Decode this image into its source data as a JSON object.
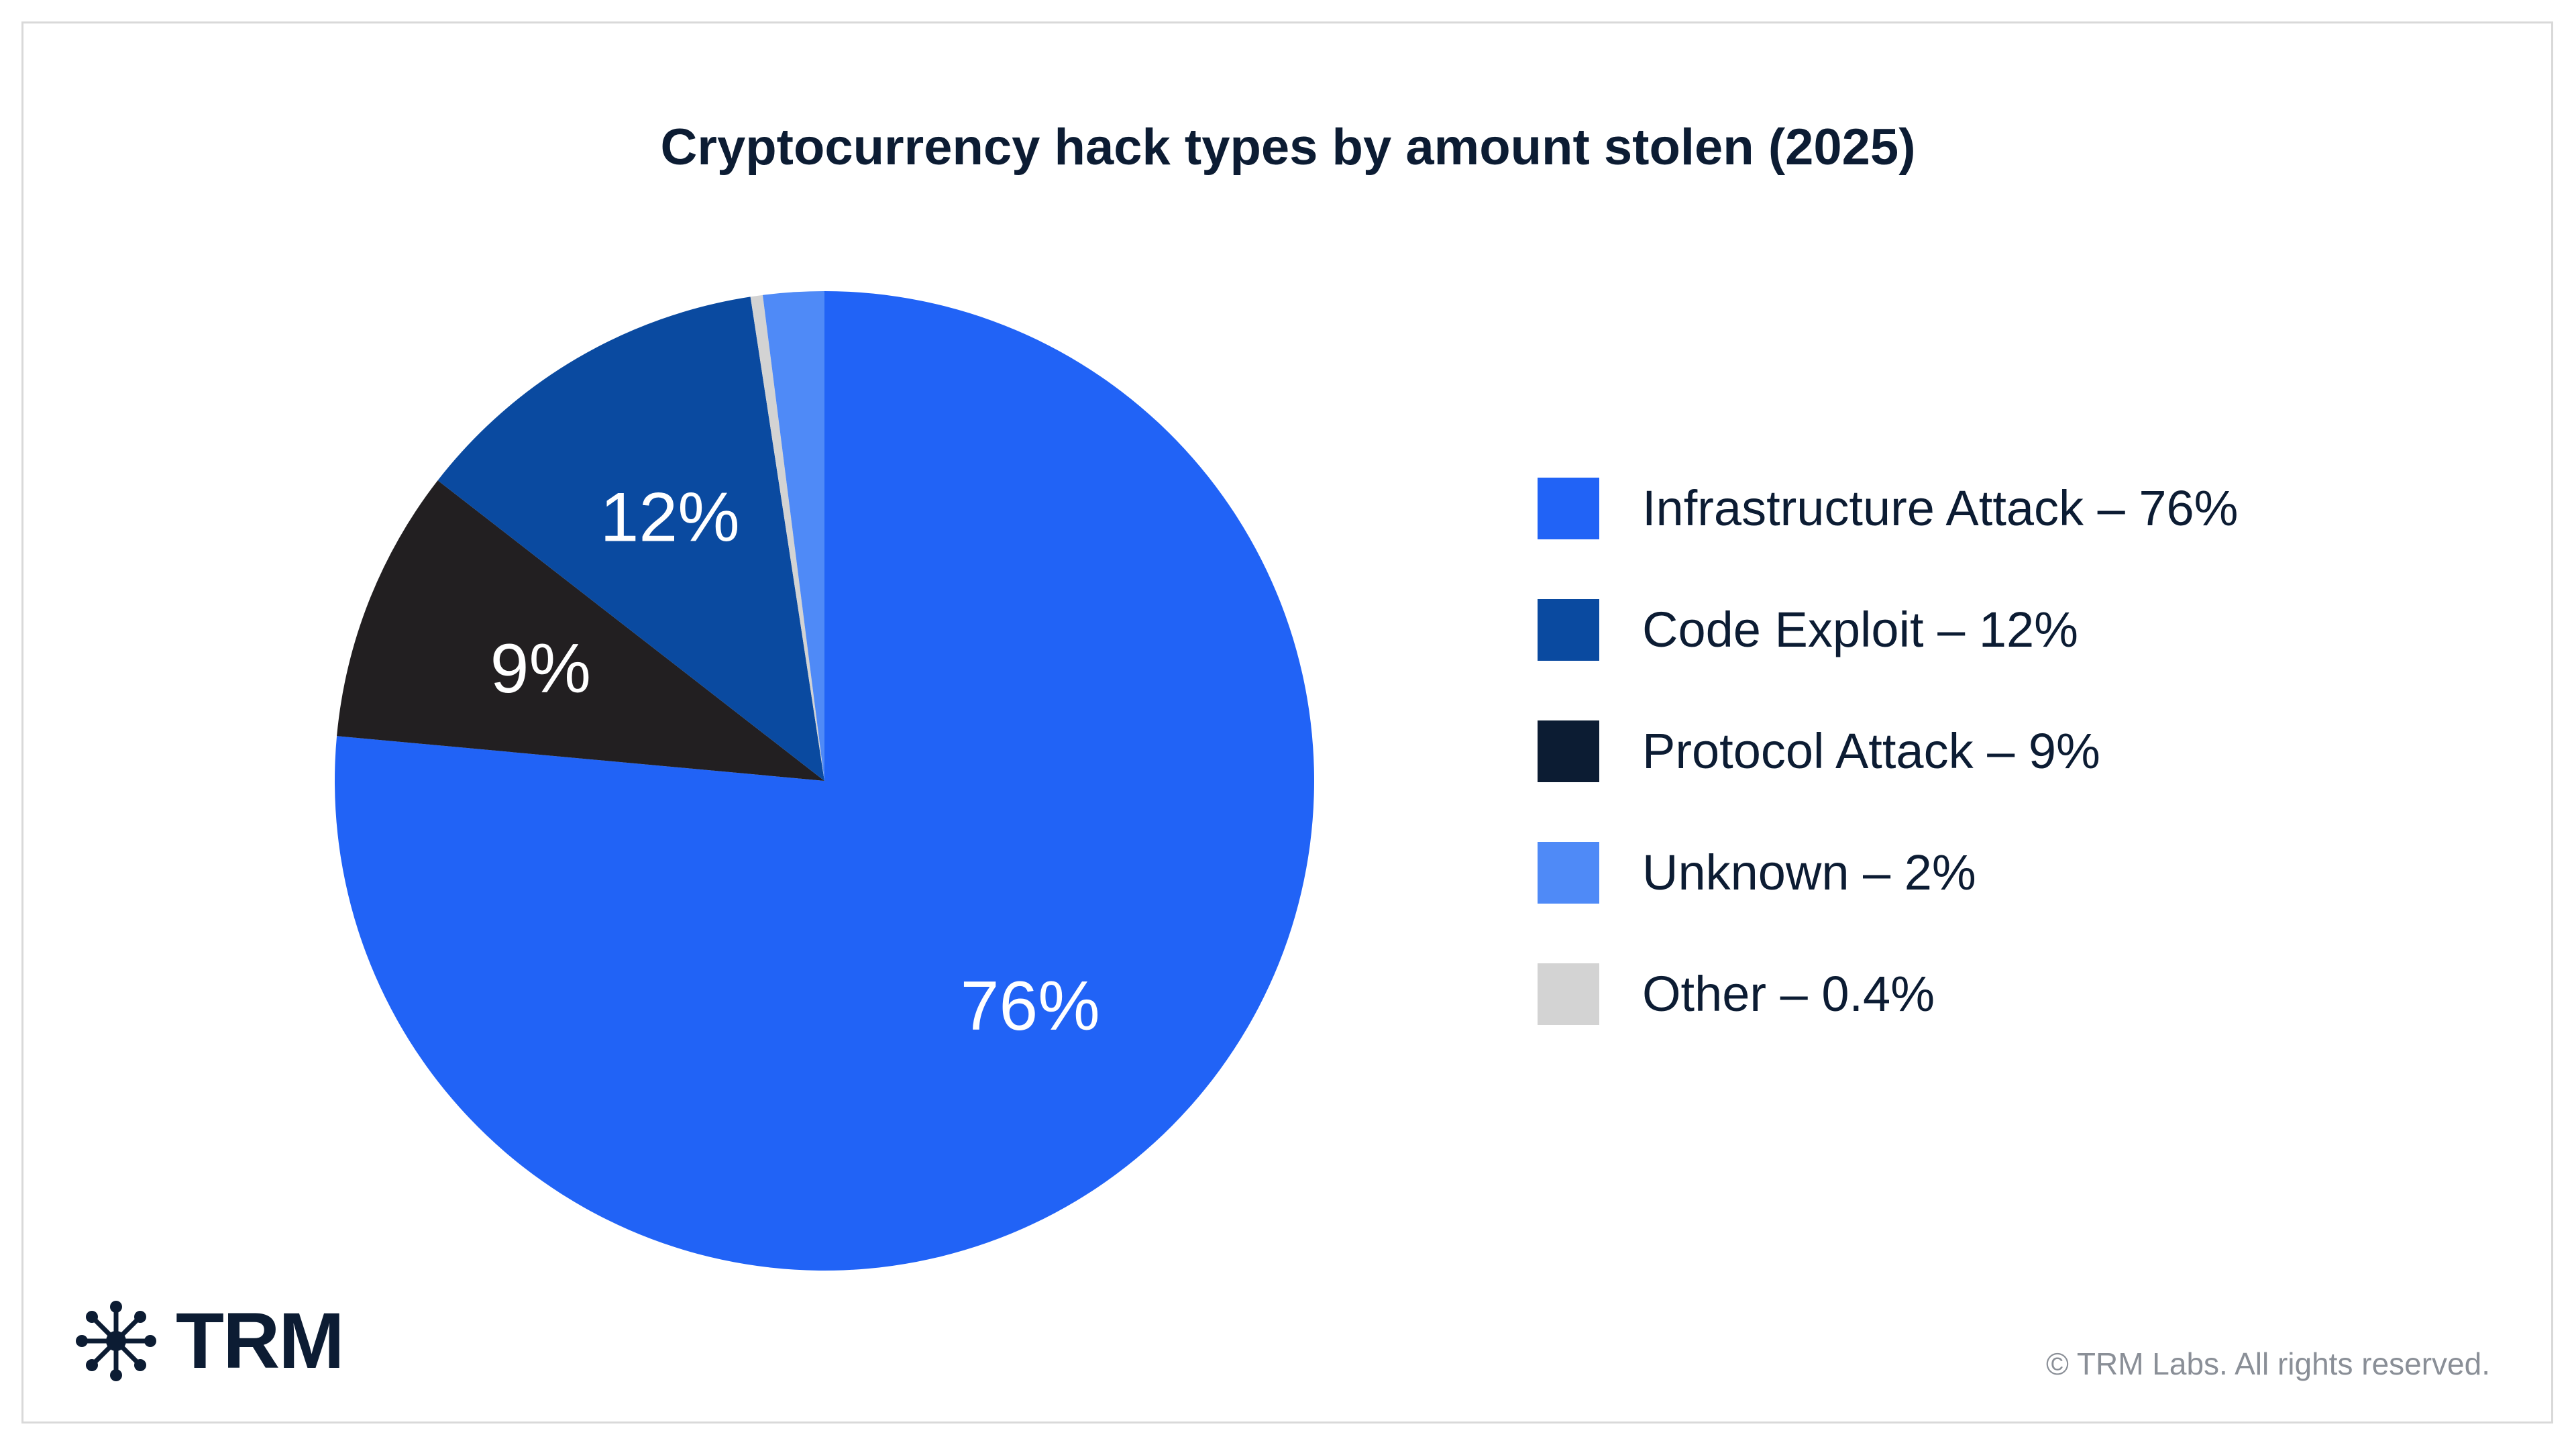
{
  "chart_data": {
    "type": "pie",
    "title": "Cryptocurrency hack types by amount stolen (2025)",
    "slices": [
      {
        "label": "Infrastructure Attack",
        "value": 76,
        "color": "#2163f6",
        "display": "76%",
        "legend": "Infrastructure Attack – 76%"
      },
      {
        "label": "Protocol Attack",
        "value": 9,
        "color": "#221f21",
        "display": "9%",
        "legend": "Protocol Attack – 9%"
      },
      {
        "label": "Code Exploit",
        "value": 12,
        "color": "#0a4aa0",
        "display": "12%",
        "legend": "Code Exploit – 12%"
      },
      {
        "label": "Other",
        "value": 0.4,
        "color": "#d3d3d3",
        "display": "",
        "legend": "Other – 0.4%"
      },
      {
        "label": "Unknown",
        "value": 2,
        "color": "#4f8af7",
        "display": "",
        "legend": "Unknown – 2%"
      }
    ],
    "legend_order": [
      "Infrastructure Attack",
      "Code Exploit",
      "Protocol Attack",
      "Unknown",
      "Other"
    ],
    "legend_position": "right",
    "swatch_colors": {
      "Infrastructure Attack": "#2163f6",
      "Code Exploit": "#0a4aa0",
      "Protocol Attack": "#0c1c33",
      "Unknown": "#4f8af7",
      "Other": "#d3d3d3"
    }
  },
  "branding": {
    "logo_text": "TRM",
    "copyright": "© TRM Labs. All rights reserved."
  }
}
